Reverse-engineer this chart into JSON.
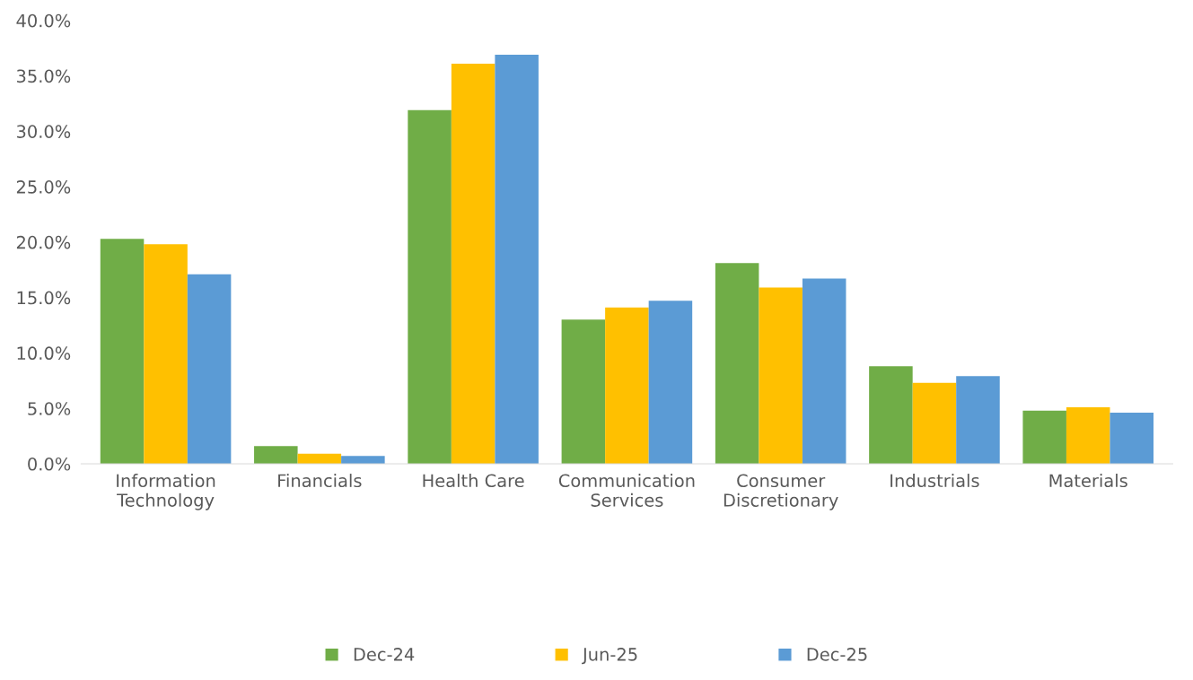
{
  "chart_data": {
    "type": "bar",
    "categories": [
      "Information Technology",
      "Financials",
      "Health Care",
      "Communication Services",
      "Consumer Discretionary",
      "Industrials",
      "Materials"
    ],
    "series": [
      {
        "name": "Dec-24",
        "color": "#70ad47",
        "values": [
          20.3,
          1.6,
          31.9,
          13.0,
          18.1,
          8.8,
          4.8
        ]
      },
      {
        "name": "Jun-25",
        "color": "#ffc000",
        "values": [
          19.8,
          0.9,
          36.1,
          14.1,
          15.9,
          7.3,
          5.1
        ]
      },
      {
        "name": "Dec-25",
        "color": "#5b9bd5",
        "values": [
          17.1,
          0.7,
          36.9,
          14.7,
          16.7,
          7.9,
          4.6
        ]
      }
    ],
    "ylim": [
      0,
      40
    ],
    "yticks": [
      {
        "value": 0,
        "label": "0.0%"
      },
      {
        "value": 5,
        "label": "5.0%"
      },
      {
        "value": 10,
        "label": "10.0%"
      },
      {
        "value": 15,
        "label": "15.0%"
      },
      {
        "value": 20,
        "label": "20.0%"
      },
      {
        "value": 25,
        "label": "25.0%"
      },
      {
        "value": 30,
        "label": "30.0%"
      },
      {
        "value": 35,
        "label": "35.0%"
      },
      {
        "value": 40,
        "label": "40.0%"
      }
    ],
    "grid": false,
    "legend": "bottom"
  }
}
